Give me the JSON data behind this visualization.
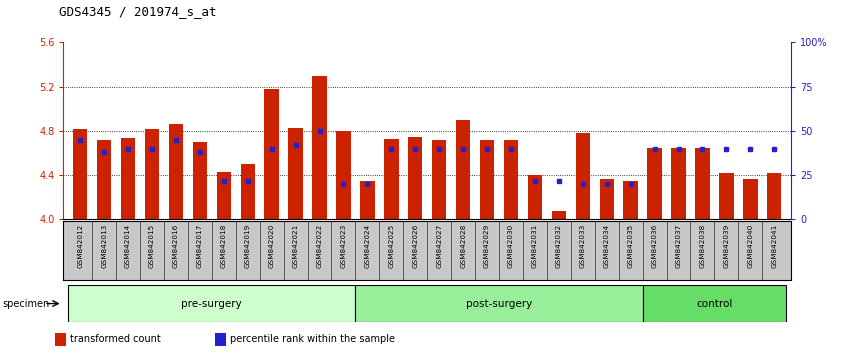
{
  "title": "GDS4345 / 201974_s_at",
  "categories": [
    "GSM842012",
    "GSM842013",
    "GSM842014",
    "GSM842015",
    "GSM842016",
    "GSM842017",
    "GSM842018",
    "GSM842019",
    "GSM842020",
    "GSM842021",
    "GSM842022",
    "GSM842023",
    "GSM842024",
    "GSM842025",
    "GSM842026",
    "GSM842027",
    "GSM842028",
    "GSM842029",
    "GSM842030",
    "GSM842031",
    "GSM842032",
    "GSM842033",
    "GSM842034",
    "GSM842035",
    "GSM842036",
    "GSM842037",
    "GSM842038",
    "GSM842039",
    "GSM842040",
    "GSM842041"
  ],
  "red_values": [
    4.82,
    4.72,
    4.74,
    4.82,
    4.86,
    4.7,
    4.43,
    4.5,
    5.18,
    4.83,
    5.3,
    4.8,
    4.35,
    4.73,
    4.75,
    4.72,
    4.9,
    4.72,
    4.72,
    4.4,
    4.08,
    4.78,
    4.37,
    4.35,
    4.65,
    4.65,
    4.65,
    4.42,
    4.37,
    4.42
  ],
  "blue_percentiles": [
    45,
    38,
    40,
    40,
    45,
    38,
    22,
    22,
    40,
    42,
    50,
    20,
    20,
    40,
    40,
    40,
    40,
    40,
    40,
    22,
    22,
    20,
    20,
    20,
    40,
    40,
    40,
    40,
    40,
    40
  ],
  "groups": [
    {
      "label": "pre-surgery",
      "start": 0,
      "end": 12,
      "color": "#CCFFCC"
    },
    {
      "label": "post-surgery",
      "start": 12,
      "end": 24,
      "color": "#99EE99"
    },
    {
      "label": "control",
      "start": 24,
      "end": 30,
      "color": "#66DD66"
    }
  ],
  "ylim": [
    4.0,
    5.6
  ],
  "yticks_left": [
    4.0,
    4.4,
    4.8,
    5.2,
    5.6
  ],
  "yticks_right_vals": [
    0,
    25,
    50,
    75,
    100
  ],
  "yticks_right_labels": [
    "0",
    "25",
    "50",
    "75",
    "100%"
  ],
  "bar_color": "#CC2200",
  "blue_color": "#2222CC",
  "grid_lines": [
    4.4,
    4.8,
    5.2
  ],
  "title_fontsize": 9,
  "tick_fontsize": 7,
  "specimen_label": "specimen",
  "legend_items": [
    {
      "color": "#CC2200",
      "label": "transformed count"
    },
    {
      "color": "#2222CC",
      "label": "percentile rank within the sample"
    }
  ]
}
